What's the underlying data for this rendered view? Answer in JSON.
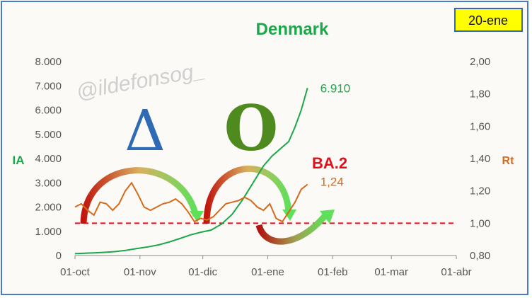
{
  "title": "Denmark",
  "date_badge": "20-ene",
  "watermark": "@ildefonsog_",
  "variant_delta": "Δ",
  "variant_omicron": "O",
  "variant_ba2": "BA.2",
  "chart_data": {
    "type": "line",
    "title": "Denmark",
    "x_ticks": [
      "01-oct",
      "01-nov",
      "01-dic",
      "01-ene",
      "01-feb",
      "01-mar",
      "01-abr"
    ],
    "x_range": [
      "2021-10-01",
      "2022-04-01"
    ],
    "y_left": {
      "label": "IA",
      "range": [
        0,
        8000
      ],
      "ticks": [
        "0",
        "1.000",
        "2.000",
        "3.000",
        "4.000",
        "5.000",
        "6.000",
        "7.000",
        "8.000"
      ]
    },
    "y_right": {
      "label": "Rt",
      "range": [
        0.8,
        2.0
      ],
      "ticks": [
        "0,80",
        "1,00",
        "1,20",
        "1,40",
        "1,60",
        "1,80",
        "2,00"
      ]
    },
    "reference_line_rt": 1.0,
    "series": [
      {
        "name": "IA",
        "axis": "left",
        "color": "#1aa84a",
        "end_label": "6.910",
        "points": [
          [
            "2021-10-01",
            80
          ],
          [
            "2021-10-05",
            90
          ],
          [
            "2021-10-10",
            110
          ],
          [
            "2021-10-15",
            130
          ],
          [
            "2021-10-20",
            160
          ],
          [
            "2021-10-25",
            210
          ],
          [
            "2021-10-30",
            280
          ],
          [
            "2021-11-05",
            360
          ],
          [
            "2021-11-10",
            440
          ],
          [
            "2021-11-15",
            560
          ],
          [
            "2021-11-20",
            700
          ],
          [
            "2021-11-25",
            850
          ],
          [
            "2021-11-30",
            960
          ],
          [
            "2021-12-05",
            1050
          ],
          [
            "2021-12-10",
            1300
          ],
          [
            "2021-12-15",
            1700
          ],
          [
            "2021-12-20",
            2300
          ],
          [
            "2021-12-25",
            3000
          ],
          [
            "2021-12-30",
            3700
          ],
          [
            "2022-01-03",
            4100
          ],
          [
            "2022-01-07",
            4400
          ],
          [
            "2022-01-11",
            4700
          ],
          [
            "2022-01-14",
            5300
          ],
          [
            "2022-01-17",
            6000
          ],
          [
            "2022-01-20",
            6910
          ]
        ]
      },
      {
        "name": "Rt",
        "axis": "right",
        "color": "#d36a1e",
        "end_label": "1,24",
        "points": [
          [
            "2021-10-01",
            1.1
          ],
          [
            "2021-10-04",
            1.12
          ],
          [
            "2021-10-07",
            1.08
          ],
          [
            "2021-10-10",
            1.05
          ],
          [
            "2021-10-13",
            1.13
          ],
          [
            "2021-10-16",
            1.12
          ],
          [
            "2021-10-19",
            1.08
          ],
          [
            "2021-10-22",
            1.12
          ],
          [
            "2021-10-25",
            1.2
          ],
          [
            "2021-10-28",
            1.25
          ],
          [
            "2021-10-31",
            1.18
          ],
          [
            "2021-11-03",
            1.1
          ],
          [
            "2021-11-06",
            1.08
          ],
          [
            "2021-11-09",
            1.1
          ],
          [
            "2021-11-12",
            1.12
          ],
          [
            "2021-11-15",
            1.13
          ],
          [
            "2021-11-18",
            1.15
          ],
          [
            "2021-11-21",
            1.12
          ],
          [
            "2021-11-24",
            1.07
          ],
          [
            "2021-11-27",
            1.01
          ],
          [
            "2021-11-30",
            1.03
          ],
          [
            "2021-12-03",
            1.02
          ],
          [
            "2021-12-06",
            1.04
          ],
          [
            "2021-12-09",
            1.08
          ],
          [
            "2021-12-12",
            1.12
          ],
          [
            "2021-12-15",
            1.13
          ],
          [
            "2021-12-18",
            1.14
          ],
          [
            "2021-12-21",
            1.16
          ],
          [
            "2021-12-24",
            1.14
          ],
          [
            "2021-12-27",
            1.1
          ],
          [
            "2021-12-30",
            1.08
          ],
          [
            "2022-01-02",
            1.12
          ],
          [
            "2022-01-05",
            1.03
          ],
          [
            "2022-01-08",
            1.01
          ],
          [
            "2022-01-11",
            1.07
          ],
          [
            "2022-01-14",
            1.13
          ],
          [
            "2022-01-17",
            1.21
          ],
          [
            "2022-01-20",
            1.24
          ]
        ]
      }
    ]
  }
}
